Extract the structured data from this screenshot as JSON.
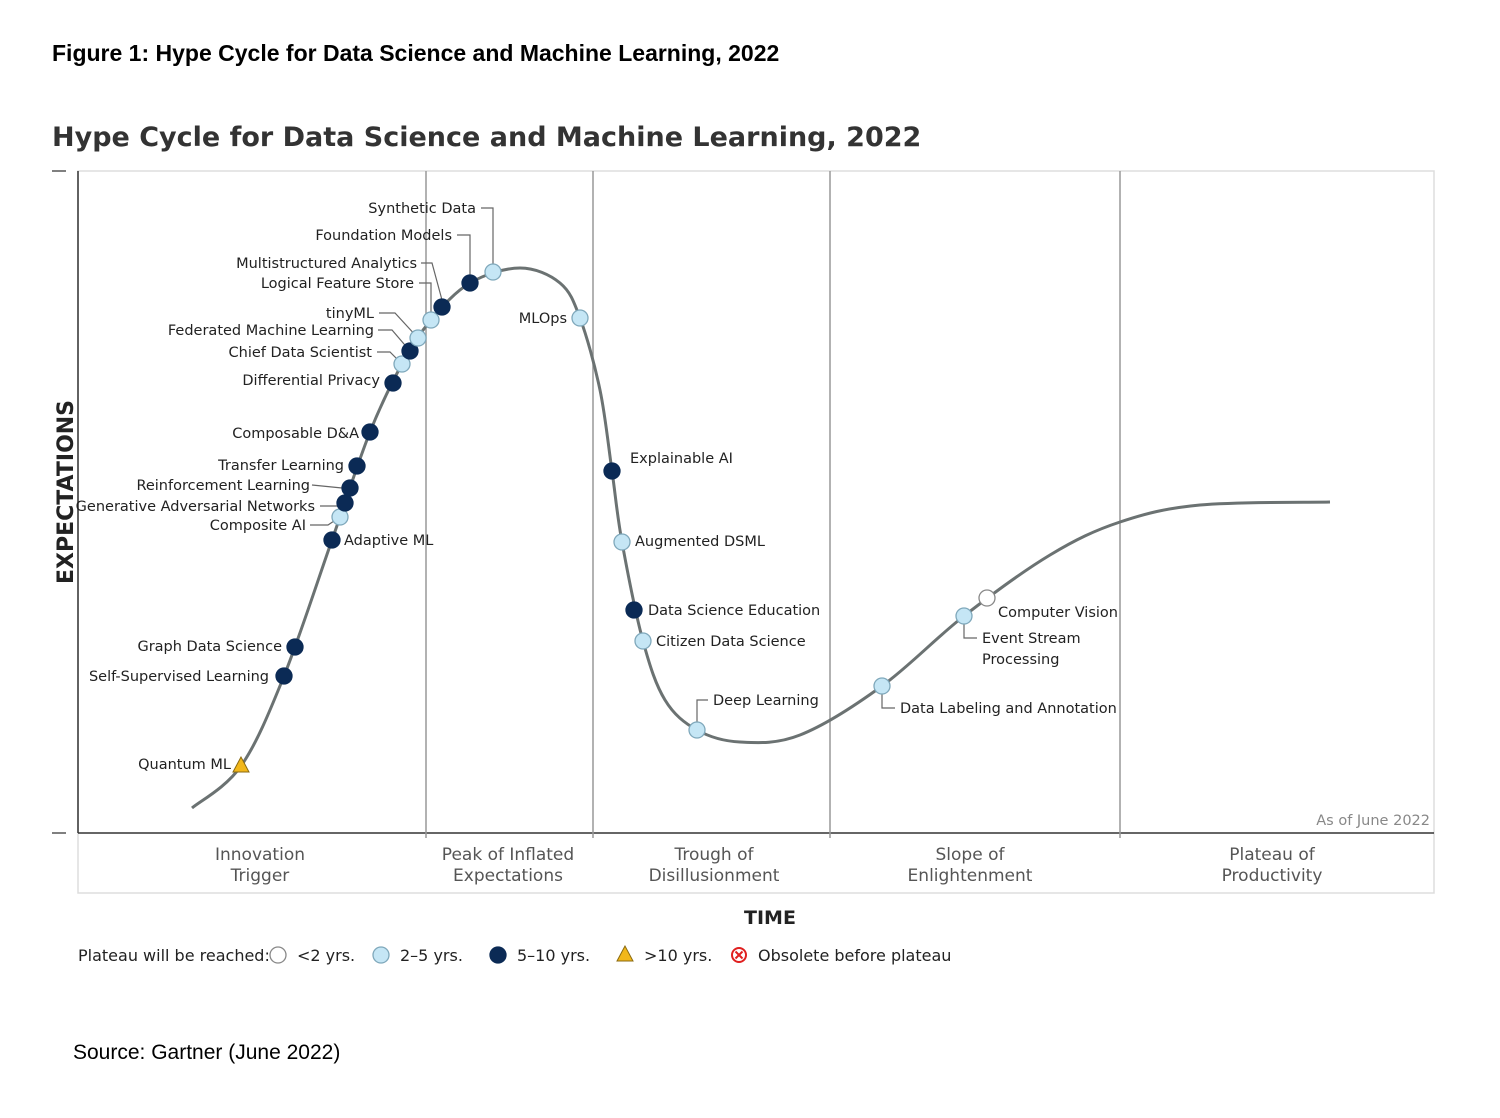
{
  "figure_title": "Figure 1: Hype Cycle for Data Science and Machine Learning, 2022",
  "source": "Source: Gartner (June 2022)",
  "chart_data": {
    "type": "hype-cycle",
    "title": "Hype Cycle for Data Science and Machine Learning, 2022",
    "ylabel": "EXPECTATIONS",
    "xlabel": "TIME",
    "annotation": "As of June 2022",
    "phases": [
      [
        "Innovation",
        "Trigger"
      ],
      [
        "Peak of Inflated",
        "Expectations"
      ],
      [
        "Trough of",
        "Disillusionment"
      ],
      [
        "Slope of",
        "Enlightenment"
      ],
      [
        "Plateau of",
        "Productivity"
      ]
    ],
    "legend": {
      "title": "Plateau will be reached:",
      "entries": [
        {
          "key": "lt2",
          "label": "<2 yrs.",
          "color": "#ffffff"
        },
        {
          "key": "2to5",
          "label": "2–5 yrs.",
          "color": "#c5e6f5"
        },
        {
          "key": "5to10",
          "label": "5–10 yrs.",
          "color": "#0b2a55"
        },
        {
          "key": "gt10",
          "label": ">10 yrs.",
          "color": "#f2b71a"
        },
        {
          "key": "obsolete",
          "label": "Obsolete before plateau",
          "color": "#e02020"
        }
      ]
    },
    "items": [
      {
        "name": "Quantum ML",
        "phase": "Innovation Trigger",
        "plateau": "gt10"
      },
      {
        "name": "Self-Supervised Learning",
        "phase": "Innovation Trigger",
        "plateau": "5to10"
      },
      {
        "name": "Graph Data Science",
        "phase": "Innovation Trigger",
        "plateau": "5to10"
      },
      {
        "name": "Adaptive ML",
        "phase": "Innovation Trigger",
        "plateau": "5to10"
      },
      {
        "name": "Composite AI",
        "phase": "Innovation Trigger",
        "plateau": "2to5"
      },
      {
        "name": "Generative Adversarial Networks",
        "phase": "Innovation Trigger",
        "plateau": "5to10"
      },
      {
        "name": "Reinforcement Learning",
        "phase": "Innovation Trigger",
        "plateau": "5to10"
      },
      {
        "name": "Transfer Learning",
        "phase": "Innovation Trigger",
        "plateau": "5to10"
      },
      {
        "name": "Composable D&A",
        "phase": "Innovation Trigger",
        "plateau": "5to10"
      },
      {
        "name": "Differential Privacy",
        "phase": "Innovation Trigger",
        "plateau": "5to10"
      },
      {
        "name": "Chief Data Scientist",
        "phase": "Innovation Trigger",
        "plateau": "2to5"
      },
      {
        "name": "Federated Machine Learning",
        "phase": "Innovation Trigger",
        "plateau": "5to10"
      },
      {
        "name": "tinyML",
        "phase": "Innovation Trigger",
        "plateau": "2to5"
      },
      {
        "name": "Logical Feature Store",
        "phase": "Peak of Inflated Expectations",
        "plateau": "2to5"
      },
      {
        "name": "Multistructured Analytics",
        "phase": "Peak of Inflated Expectations",
        "plateau": "5to10"
      },
      {
        "name": "Foundation Models",
        "phase": "Peak of Inflated Expectations",
        "plateau": "5to10"
      },
      {
        "name": "Synthetic Data",
        "phase": "Peak of Inflated Expectations",
        "plateau": "2to5"
      },
      {
        "name": "MLOps",
        "phase": "Peak of Inflated Expectations",
        "plateau": "2to5"
      },
      {
        "name": "Explainable AI",
        "phase": "Trough of Disillusionment",
        "plateau": "5to10"
      },
      {
        "name": "Augmented DSML",
        "phase": "Trough of Disillusionment",
        "plateau": "2to5"
      },
      {
        "name": "Data Science Education",
        "phase": "Trough of Disillusionment",
        "plateau": "5to10"
      },
      {
        "name": "Citizen Data Science",
        "phase": "Trough of Disillusionment",
        "plateau": "2to5"
      },
      {
        "name": "Deep Learning",
        "phase": "Trough of Disillusionment",
        "plateau": "2to5"
      },
      {
        "name": "Data Labeling and Annotation",
        "phase": "Slope of Enlightenment",
        "plateau": "2to5"
      },
      {
        "name": "Event Stream Processing",
        "phase": "Slope of Enlightenment",
        "plateau": "2to5"
      },
      {
        "name": "Computer Vision",
        "phase": "Slope of Enlightenment",
        "plateau": "lt2"
      }
    ]
  }
}
